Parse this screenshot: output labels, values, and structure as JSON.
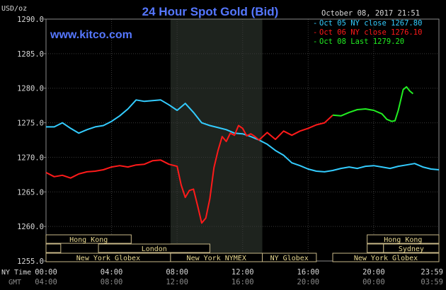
{
  "chart_data": {
    "type": "line",
    "title": "24 Hour Spot Gold (Bid)",
    "watermark": "www.kitco.com",
    "timestamp": "October 08, 2017 21:51",
    "ylabel": "USD/oz",
    "ylim": [
      1255.0,
      1290.0
    ],
    "y_ticks": [
      "1290.0",
      "1285.0",
      "1280.0",
      "1275.0",
      "1270.0",
      "1265.0",
      "1260.0",
      "1255.0"
    ],
    "x_axis_label_ny": "NY Time",
    "x_axis_label_gmt": "GMT",
    "x_ticks_ny": [
      "00:00",
      "04:00",
      "08:00",
      "12:00",
      "16:00",
      "20:00",
      "23:59"
    ],
    "x_ticks_gmt": [
      "04:00",
      "08:00",
      "12:00",
      "16:00",
      "20:00",
      "00:00",
      "03:59"
    ],
    "grid": true,
    "shaded_hours": [
      7.6,
      13.2
    ],
    "legend": [
      {
        "label": "Oct 05 NY close 1267.80",
        "color": "#33ccff"
      },
      {
        "label": "Oct 06 NY close 1276.10",
        "color": "#ff1a1a"
      },
      {
        "label": "Oct 08 Last 1279.20",
        "color": "#22ee22"
      }
    ],
    "series": [
      {
        "color": "#33ccff",
        "x": [
          0,
          0.5,
          1,
          1.5,
          2,
          2.5,
          3,
          3.5,
          4,
          4.5,
          5,
          5.5,
          6,
          6.5,
          7,
          7.5,
          8,
          8.5,
          9,
          9.5,
          10,
          10.5,
          11,
          11.5,
          12,
          12.5,
          13,
          13.5,
          14,
          14.5,
          15,
          15.5,
          16,
          16.5,
          17,
          17.5,
          18,
          18.5,
          19,
          19.5,
          20,
          20.5,
          21,
          21.5,
          22,
          22.5,
          23,
          23.5,
          23.98
        ],
        "values": [
          1274.4,
          1274.4,
          1275.0,
          1274.2,
          1273.5,
          1274.0,
          1274.4,
          1274.6,
          1275.2,
          1276.0,
          1277.0,
          1278.3,
          1278.1,
          1278.2,
          1278.3,
          1277.6,
          1276.8,
          1277.8,
          1276.5,
          1275.0,
          1274.6,
          1274.3,
          1274.0,
          1273.5,
          1273.4,
          1273.0,
          1272.5,
          1271.9,
          1271.0,
          1270.3,
          1269.2,
          1268.8,
          1268.3,
          1268.0,
          1267.9,
          1268.1,
          1268.4,
          1268.6,
          1268.4,
          1268.7,
          1268.8,
          1268.6,
          1268.4,
          1268.7,
          1268.9,
          1269.1,
          1268.6,
          1268.3,
          1268.2
        ]
      },
      {
        "color": "#ff1a1a",
        "x": [
          0,
          0.5,
          1,
          1.5,
          2,
          2.5,
          3,
          3.5,
          4,
          4.5,
          5,
          5.5,
          6,
          6.5,
          7,
          7.5,
          8,
          8.25,
          8.5,
          8.75,
          9,
          9.25,
          9.5,
          9.75,
          10,
          10.25,
          10.5,
          10.75,
          11,
          11.25,
          11.5,
          11.75,
          12,
          12.25,
          12.5,
          12.75,
          13,
          13.5,
          14,
          14.5,
          15,
          15.5,
          16,
          16.5,
          17,
          17.5
        ],
        "values": [
          1267.8,
          1267.2,
          1267.4,
          1267.0,
          1267.6,
          1267.9,
          1268.0,
          1268.2,
          1268.6,
          1268.8,
          1268.6,
          1268.9,
          1269.0,
          1269.5,
          1269.6,
          1269.0,
          1268.7,
          1266.0,
          1264.2,
          1265.2,
          1265.4,
          1263.0,
          1260.5,
          1261.2,
          1264.0,
          1268.5,
          1271.0,
          1273.0,
          1272.3,
          1273.5,
          1273.2,
          1274.6,
          1274.2,
          1273.1,
          1273.4,
          1273.0,
          1272.5,
          1273.6,
          1272.6,
          1273.8,
          1273.2,
          1273.8,
          1274.2,
          1274.7,
          1275.0,
          1276.1
        ]
      },
      {
        "color": "#22ee22",
        "x": [
          17.5,
          18.0,
          18.5,
          19.0,
          19.5,
          20.0,
          20.5,
          20.8,
          21.1,
          21.3,
          21.5,
          21.8,
          22.0,
          22.2,
          22.4
        ],
        "values": [
          1276.1,
          1276.0,
          1276.5,
          1276.9,
          1277.0,
          1276.8,
          1276.3,
          1275.5,
          1275.2,
          1275.3,
          1276.8,
          1279.8,
          1280.2,
          1279.6,
          1279.2
        ]
      }
    ],
    "session_rows": [
      [
        {
          "label": "Hong Kong",
          "start": 0,
          "end": 5.2
        },
        {
          "label": "Hong Kong",
          "start": 19.6,
          "end": 23.98
        }
      ],
      [
        {
          "label": "",
          "start": 0,
          "end": 0.9
        },
        {
          "label": "London",
          "start": 3.2,
          "end": 10.0
        },
        {
          "label": "",
          "start": 19.6,
          "end": 20.6
        },
        {
          "label": "Sydney",
          "start": 20.6,
          "end": 23.98
        }
      ],
      [
        {
          "label": "New York Globex",
          "start": 0,
          "end": 7.6
        },
        {
          "label": "New York NYMEX",
          "start": 7.6,
          "end": 13.2
        },
        {
          "label": "NY Globex",
          "start": 13.2,
          "end": 16.5
        },
        {
          "label": "New York Globex",
          "start": 17.5,
          "end": 23.98
        }
      ]
    ]
  }
}
